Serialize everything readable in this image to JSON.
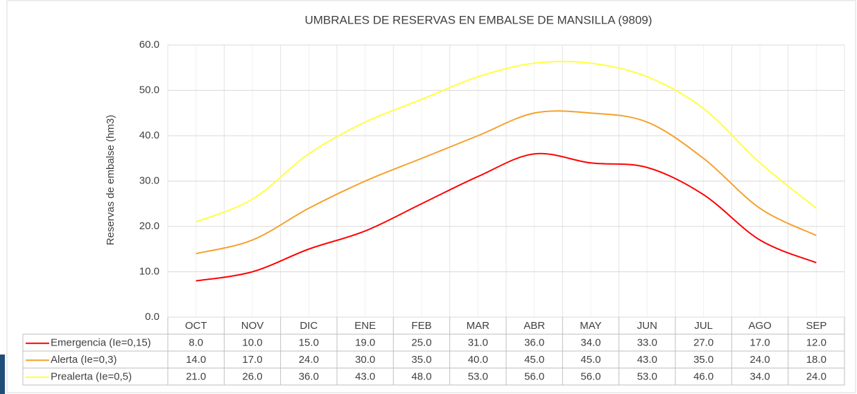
{
  "chart_data": {
    "type": "line",
    "title": "UMBRALES DE RESERVAS EN EMBALSE DE MANSILLA (9809)",
    "y_label": "Reservas de embalse (hm3)",
    "categories": [
      "OCT",
      "NOV",
      "DIC",
      "ENE",
      "FEB",
      "MAR",
      "ABR",
      "MAY",
      "JUN",
      "JUL",
      "AGO",
      "SEP"
    ],
    "series": [
      {
        "name": "Emergencia (Ie=0,15)",
        "color": "#ff0000",
        "values": [
          8,
          10,
          15,
          19,
          25,
          31,
          36,
          34,
          33,
          27,
          17,
          12
        ],
        "value_labels": [
          "8.0",
          "10.0",
          "15.0",
          "19.0",
          "25.0",
          "31.0",
          "36.0",
          "34.0",
          "33.0",
          "27.0",
          "17.0",
          "12.0"
        ]
      },
      {
        "name": "Alerta (Ie=0,3)",
        "color": "#f5a02a",
        "values": [
          14,
          17,
          24,
          30,
          35,
          40,
          45,
          45,
          43,
          35,
          24,
          18
        ],
        "value_labels": [
          "14.0",
          "17.0",
          "24.0",
          "30.0",
          "35.0",
          "40.0",
          "45.0",
          "45.0",
          "43.0",
          "35.0",
          "24.0",
          "18.0"
        ]
      },
      {
        "name": "Prealerta (Ie=0,5)",
        "color": "#ffff40",
        "values": [
          21,
          26,
          36,
          43,
          48,
          53,
          56,
          56,
          53,
          46,
          34,
          24
        ],
        "value_labels": [
          "21.0",
          "26.0",
          "36.0",
          "43.0",
          "48.0",
          "53.0",
          "56.0",
          "56.0",
          "53.0",
          "46.0",
          "34.0",
          "24.0"
        ]
      }
    ],
    "ylim": [
      0,
      60
    ],
    "yticks": [
      {
        "value": 0,
        "label": "0.0"
      },
      {
        "value": 10,
        "label": "10.0"
      },
      {
        "value": 20,
        "label": "20.0"
      },
      {
        "value": 30,
        "label": "30.0"
      },
      {
        "value": 40,
        "label": "40.0"
      },
      {
        "value": 50,
        "label": "50.0"
      },
      {
        "value": 60,
        "label": "60.0"
      }
    ],
    "grid": true
  }
}
